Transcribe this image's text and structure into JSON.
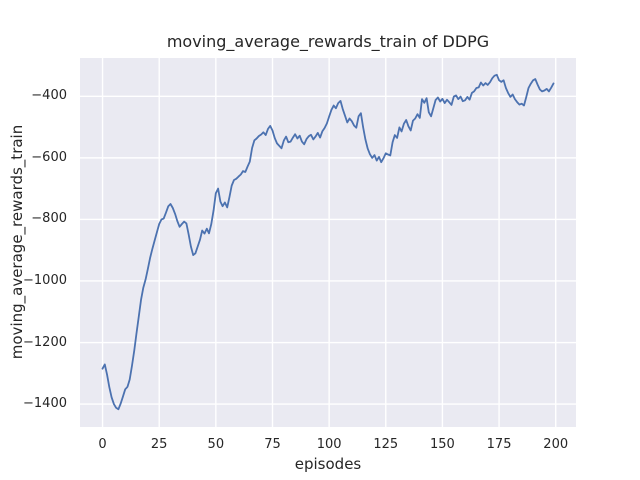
{
  "chart_data": {
    "type": "line",
    "title": "moving_average_rewards_train of DDPG",
    "xlabel": "episodes",
    "ylabel": "moving_average_rewards_train",
    "legend": "none",
    "grid": true,
    "x_start": 0,
    "x_step": 1,
    "values": [
      -1285,
      -1271,
      -1305,
      -1345,
      -1378,
      -1400,
      -1412,
      -1417,
      -1398,
      -1376,
      -1352,
      -1344,
      -1320,
      -1275,
      -1225,
      -1170,
      -1115,
      -1060,
      -1022,
      -995,
      -960,
      -925,
      -895,
      -868,
      -842,
      -815,
      -800,
      -797,
      -778,
      -757,
      -750,
      -763,
      -782,
      -805,
      -824,
      -815,
      -807,
      -813,
      -848,
      -888,
      -916,
      -910,
      -888,
      -866,
      -836,
      -846,
      -830,
      -845,
      -815,
      -770,
      -715,
      -700,
      -742,
      -757,
      -745,
      -761,
      -728,
      -690,
      -672,
      -668,
      -661,
      -654,
      -643,
      -646,
      -628,
      -612,
      -568,
      -543,
      -537,
      -529,
      -524,
      -517,
      -526,
      -506,
      -496,
      -511,
      -536,
      -553,
      -561,
      -569,
      -544,
      -531,
      -549,
      -547,
      -534,
      -523,
      -537,
      -528,
      -547,
      -556,
      -539,
      -530,
      -525,
      -540,
      -531,
      -519,
      -534,
      -514,
      -503,
      -488,
      -466,
      -444,
      -430,
      -439,
      -422,
      -415,
      -441,
      -463,
      -485,
      -472,
      -481,
      -495,
      -502,
      -465,
      -455,
      -500,
      -540,
      -570,
      -588,
      -600,
      -591,
      -609,
      -597,
      -614,
      -601,
      -585,
      -589,
      -592,
      -549,
      -526,
      -535,
      -501,
      -514,
      -489,
      -477,
      -497,
      -511,
      -479,
      -472,
      -458,
      -470,
      -409,
      -421,
      -406,
      -452,
      -465,
      -438,
      -412,
      -404,
      -417,
      -408,
      -422,
      -411,
      -419,
      -428,
      -401,
      -397,
      -409,
      -401,
      -416,
      -413,
      -402,
      -411,
      -389,
      -384,
      -373,
      -371,
      -355,
      -365,
      -357,
      -363,
      -354,
      -341,
      -333,
      -330,
      -348,
      -353,
      -348,
      -373,
      -389,
      -402,
      -394,
      -409,
      -419,
      -427,
      -424,
      -430,
      -402,
      -373,
      -359,
      -348,
      -344,
      -362,
      -378,
      -384,
      -381,
      -376,
      -384,
      -372,
      -358
    ],
    "xlim": [
      -9.95,
      208.95
    ],
    "ylim": [
      -1474.5,
      -275.5
    ],
    "xticks": [
      0,
      25,
      50,
      75,
      100,
      125,
      150,
      175,
      200
    ],
    "yticks": [
      -400,
      -600,
      -800,
      -1000,
      -1200,
      -1400
    ],
    "colors": {
      "line": "#4c72b0",
      "axes_bg": "#eaeaf2",
      "grid": "#ffffff",
      "text": "#262626",
      "figure_bg": "#ffffff"
    }
  }
}
